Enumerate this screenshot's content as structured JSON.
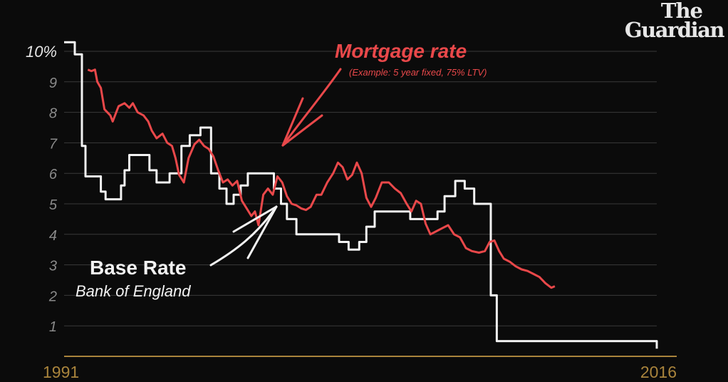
{
  "brand": {
    "line1": "The",
    "line2": "Guardian"
  },
  "colors": {
    "background": "#0b0b0b",
    "grid": "#3a3a3a",
    "axis": "#a9843c",
    "base": "#f2f2f2",
    "mortgage": "#e9484a",
    "tick": "#8a8a8a"
  },
  "chart_data": {
    "type": "line",
    "x_start_label": "1991",
    "x_end_label": "2016",
    "xlim": [
      1991,
      2016
    ],
    "ylim": [
      0,
      10
    ],
    "y_ticks": [
      {
        "value": 10,
        "label": "10%"
      },
      {
        "value": 9,
        "label": "9"
      },
      {
        "value": 8,
        "label": "8"
      },
      {
        "value": 7,
        "label": "7"
      },
      {
        "value": 6,
        "label": "6"
      },
      {
        "value": 5,
        "label": "5"
      },
      {
        "value": 4,
        "label": "4"
      },
      {
        "value": 3,
        "label": "3"
      },
      {
        "value": 2,
        "label": "2"
      },
      {
        "value": 1,
        "label": "1"
      }
    ],
    "grid": true,
    "series": [
      {
        "name": "Base Rate",
        "subtitle": "Bank of England",
        "step": true,
        "points": [
          [
            1991.0,
            10.3
          ],
          [
            1991.45,
            9.9
          ],
          [
            1991.75,
            6.9
          ],
          [
            1991.9,
            5.9
          ],
          [
            1992.55,
            5.4
          ],
          [
            1992.75,
            5.15
          ],
          [
            1993.4,
            5.6
          ],
          [
            1993.55,
            6.1
          ],
          [
            1993.75,
            6.6
          ],
          [
            1994.6,
            6.1
          ],
          [
            1994.9,
            5.7
          ],
          [
            1995.45,
            6.0
          ],
          [
            1995.95,
            6.9
          ],
          [
            1996.3,
            7.25
          ],
          [
            1996.75,
            7.5
          ],
          [
            1997.2,
            6.0
          ],
          [
            1997.55,
            5.5
          ],
          [
            1997.85,
            5.0
          ],
          [
            1998.15,
            5.3
          ],
          [
            1998.45,
            5.6
          ],
          [
            1998.75,
            6.0
          ],
          [
            1999.85,
            5.5
          ],
          [
            2000.15,
            5.0
          ],
          [
            2000.4,
            4.5
          ],
          [
            2000.8,
            4.0
          ],
          [
            2002.6,
            3.75
          ],
          [
            2003.0,
            3.5
          ],
          [
            2003.45,
            3.75
          ],
          [
            2003.75,
            4.25
          ],
          [
            2004.1,
            4.75
          ],
          [
            2005.6,
            4.5
          ],
          [
            2006.75,
            4.75
          ],
          [
            2007.05,
            5.25
          ],
          [
            2007.5,
            5.75
          ],
          [
            2007.9,
            5.5
          ],
          [
            2008.3,
            5.0
          ],
          [
            2008.8,
            5.0
          ],
          [
            2009.0,
            2.0
          ],
          [
            2009.25,
            0.5
          ],
          [
            2015.75,
            0.5
          ],
          [
            2016.0,
            0.25
          ]
        ]
      },
      {
        "name": "Mortgage rate",
        "subtitle": "(Example: 5 year fixed, 75% LTV)",
        "step": false,
        "points": [
          [
            1992.0,
            9.4
          ],
          [
            1992.15,
            9.35
          ],
          [
            1992.3,
            9.4
          ],
          [
            1992.4,
            9.0
          ],
          [
            1992.55,
            8.8
          ],
          [
            1992.7,
            8.1
          ],
          [
            1992.95,
            7.9
          ],
          [
            1993.05,
            7.7
          ],
          [
            1993.3,
            8.2
          ],
          [
            1993.55,
            8.3
          ],
          [
            1993.75,
            8.15
          ],
          [
            1993.9,
            8.3
          ],
          [
            1994.1,
            8.0
          ],
          [
            1994.35,
            7.9
          ],
          [
            1994.55,
            7.7
          ],
          [
            1994.7,
            7.4
          ],
          [
            1994.9,
            7.15
          ],
          [
            1995.15,
            7.3
          ],
          [
            1995.35,
            7.0
          ],
          [
            1995.55,
            6.9
          ],
          [
            1995.7,
            6.5
          ],
          [
            1995.85,
            5.95
          ],
          [
            1996.05,
            5.7
          ],
          [
            1996.25,
            6.5
          ],
          [
            1996.5,
            6.95
          ],
          [
            1996.7,
            7.1
          ],
          [
            1996.9,
            6.9
          ],
          [
            1997.1,
            6.8
          ],
          [
            1997.3,
            6.55
          ],
          [
            1997.5,
            6.1
          ],
          [
            1997.7,
            5.7
          ],
          [
            1997.9,
            5.8
          ],
          [
            1998.1,
            5.6
          ],
          [
            1998.3,
            5.75
          ],
          [
            1998.5,
            5.1
          ],
          [
            1998.7,
            4.85
          ],
          [
            1998.9,
            4.6
          ],
          [
            1999.05,
            4.75
          ],
          [
            1999.2,
            4.3
          ],
          [
            1999.4,
            5.3
          ],
          [
            1999.6,
            5.5
          ],
          [
            1999.8,
            5.3
          ],
          [
            2000.0,
            5.9
          ],
          [
            2000.2,
            5.7
          ],
          [
            2000.4,
            5.25
          ],
          [
            2000.6,
            5.0
          ],
          [
            2000.8,
            4.95
          ],
          [
            2001.0,
            4.85
          ],
          [
            2001.2,
            4.8
          ],
          [
            2001.4,
            4.9
          ],
          [
            2001.65,
            5.3
          ],
          [
            2001.85,
            5.3
          ],
          [
            2002.1,
            5.7
          ],
          [
            2002.35,
            6.0
          ],
          [
            2002.55,
            6.35
          ],
          [
            2002.75,
            6.2
          ],
          [
            2002.95,
            5.8
          ],
          [
            2003.15,
            5.95
          ],
          [
            2003.35,
            6.35
          ],
          [
            2003.55,
            6.0
          ],
          [
            2003.75,
            5.2
          ],
          [
            2003.95,
            4.9
          ],
          [
            2004.15,
            5.2
          ],
          [
            2004.4,
            5.7
          ],
          [
            2004.7,
            5.7
          ],
          [
            2004.95,
            5.5
          ],
          [
            2005.2,
            5.35
          ],
          [
            2005.45,
            5.0
          ],
          [
            2005.65,
            4.75
          ],
          [
            2005.85,
            5.1
          ],
          [
            2006.05,
            5.0
          ],
          [
            2006.25,
            4.35
          ],
          [
            2006.45,
            4.0
          ],
          [
            2006.7,
            4.1
          ],
          [
            2006.95,
            4.2
          ],
          [
            2007.2,
            4.3
          ],
          [
            2007.45,
            4.0
          ],
          [
            2007.7,
            3.9
          ],
          [
            2007.95,
            3.55
          ],
          [
            2008.2,
            3.45
          ],
          [
            2008.5,
            3.4
          ],
          [
            2008.75,
            3.45
          ],
          [
            2008.95,
            3.75
          ],
          [
            2009.15,
            3.8
          ],
          [
            2009.35,
            3.45
          ],
          [
            2009.55,
            3.2
          ],
          [
            2009.8,
            3.1
          ],
          [
            2010.05,
            2.95
          ],
          [
            2010.3,
            2.85
          ],
          [
            2010.55,
            2.8
          ],
          [
            2010.8,
            2.7
          ],
          [
            2011.05,
            2.6
          ],
          [
            2011.3,
            2.4
          ],
          [
            2011.55,
            2.25
          ],
          [
            2011.7,
            2.3
          ]
        ]
      }
    ],
    "annotations": [
      {
        "text": "Mortgage rate",
        "subtext": "(Example: 5 year fixed, 75% LTV)"
      },
      {
        "text": "Base Rate",
        "subtext": "Bank of England"
      }
    ]
  }
}
